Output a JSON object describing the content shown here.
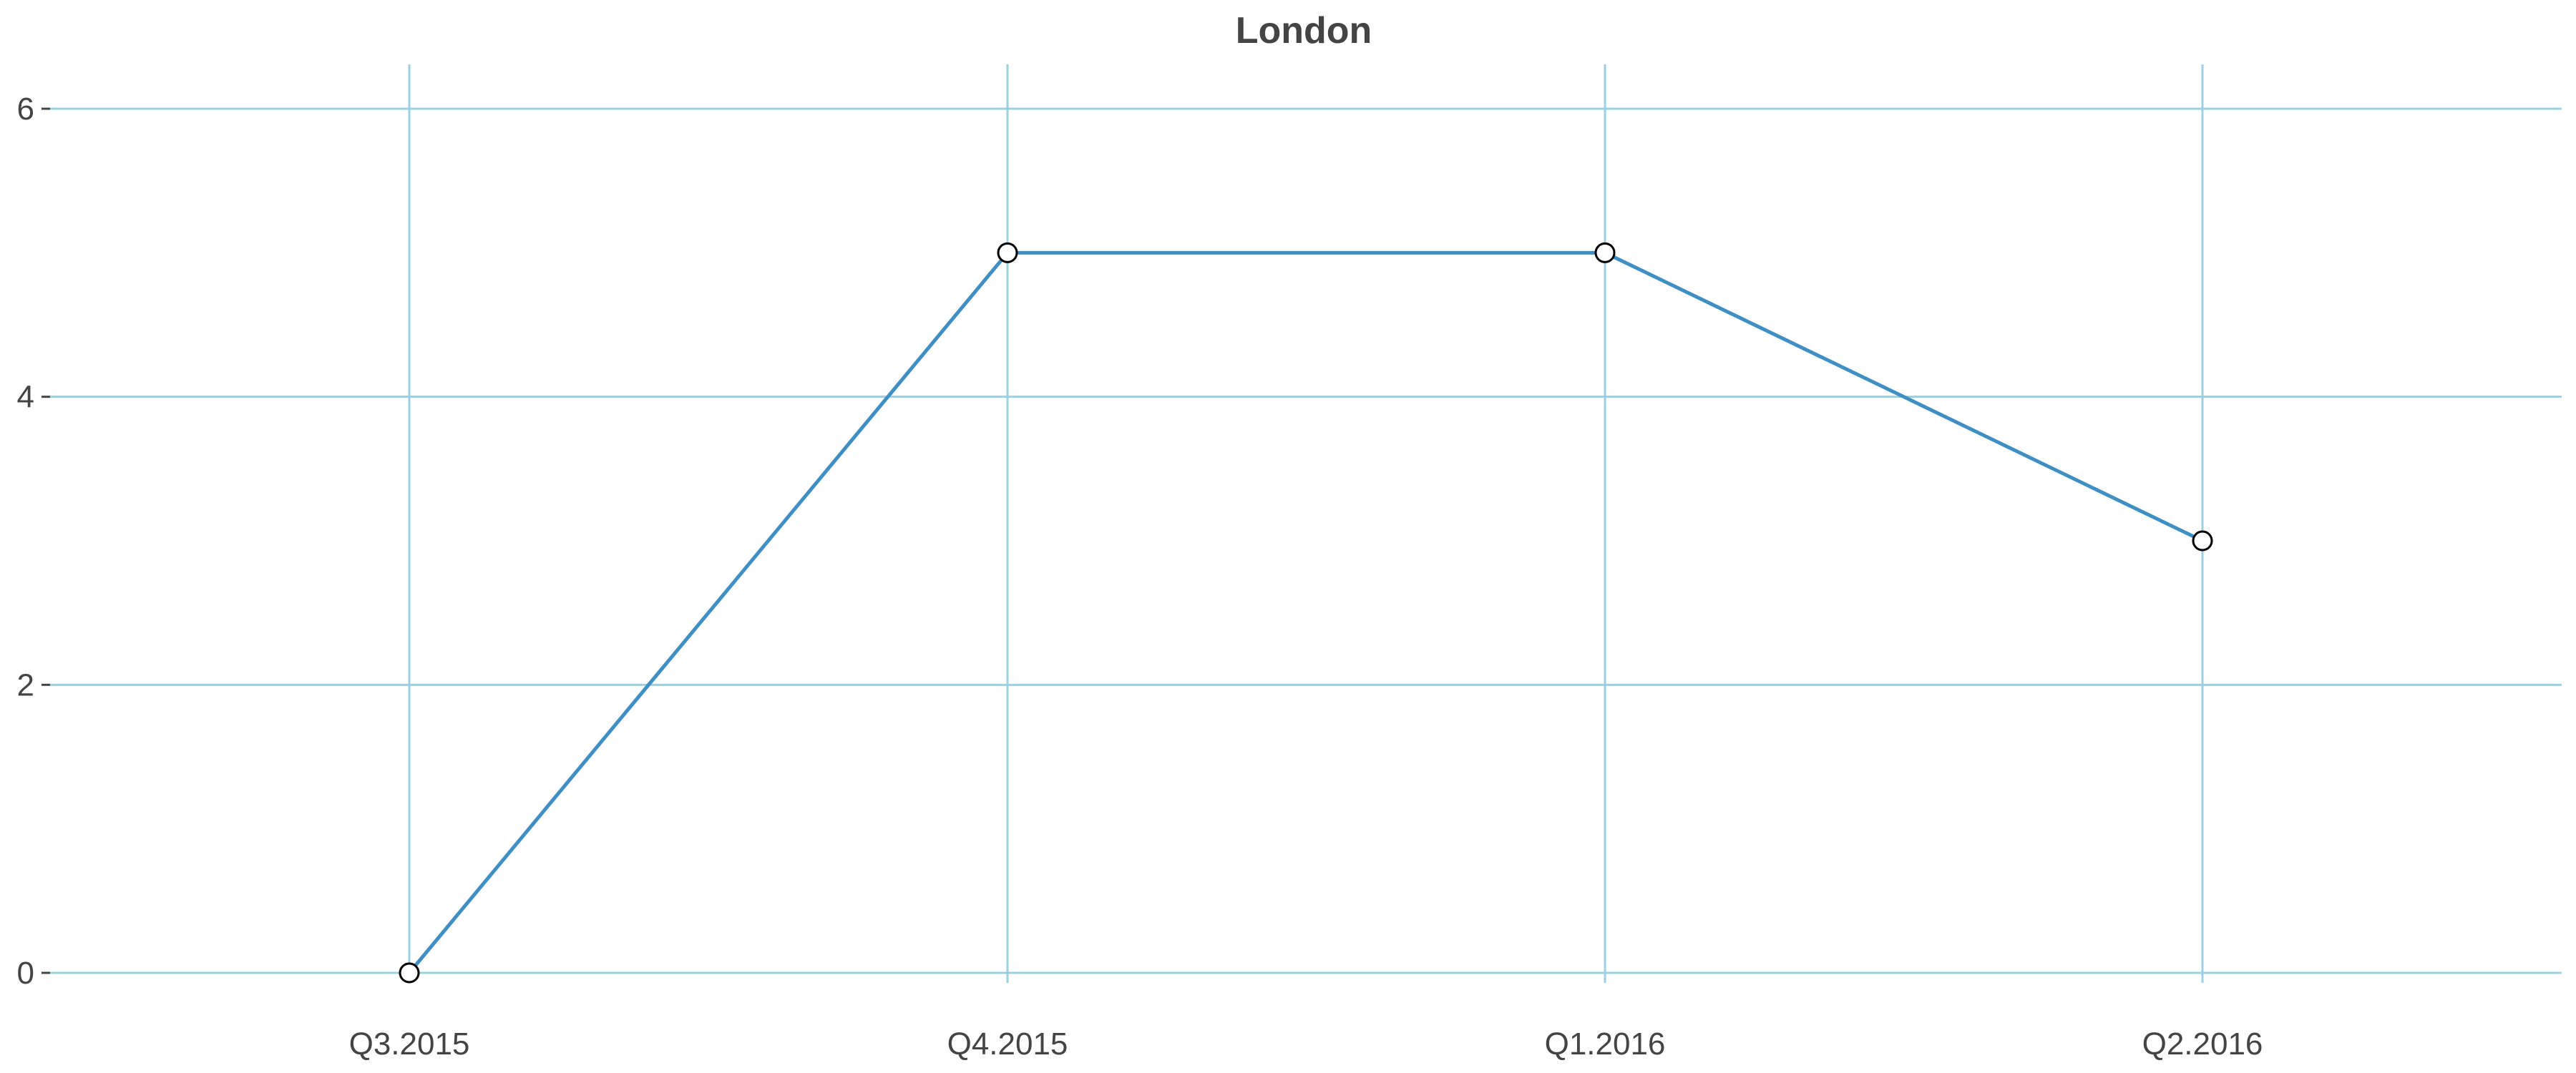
{
  "chart_data": {
    "type": "line",
    "title": "London",
    "xlabel": "",
    "ylabel": "",
    "categories": [
      "Q3.2015",
      "Q4.2015",
      "Q1.2016",
      "Q2.2016"
    ],
    "series": [
      {
        "values": [
          0,
          5,
          5,
          3
        ]
      }
    ],
    "ylim": [
      0,
      6
    ],
    "yticks": [
      0,
      2,
      4,
      6
    ],
    "grid": true,
    "legend": "none",
    "colors": {
      "line": "#3f8fc4",
      "grid": "#9ccfe0",
      "marker_fill": "#ffffff",
      "marker_stroke": "#000000",
      "text": "#444444",
      "tick": "#444444"
    }
  }
}
